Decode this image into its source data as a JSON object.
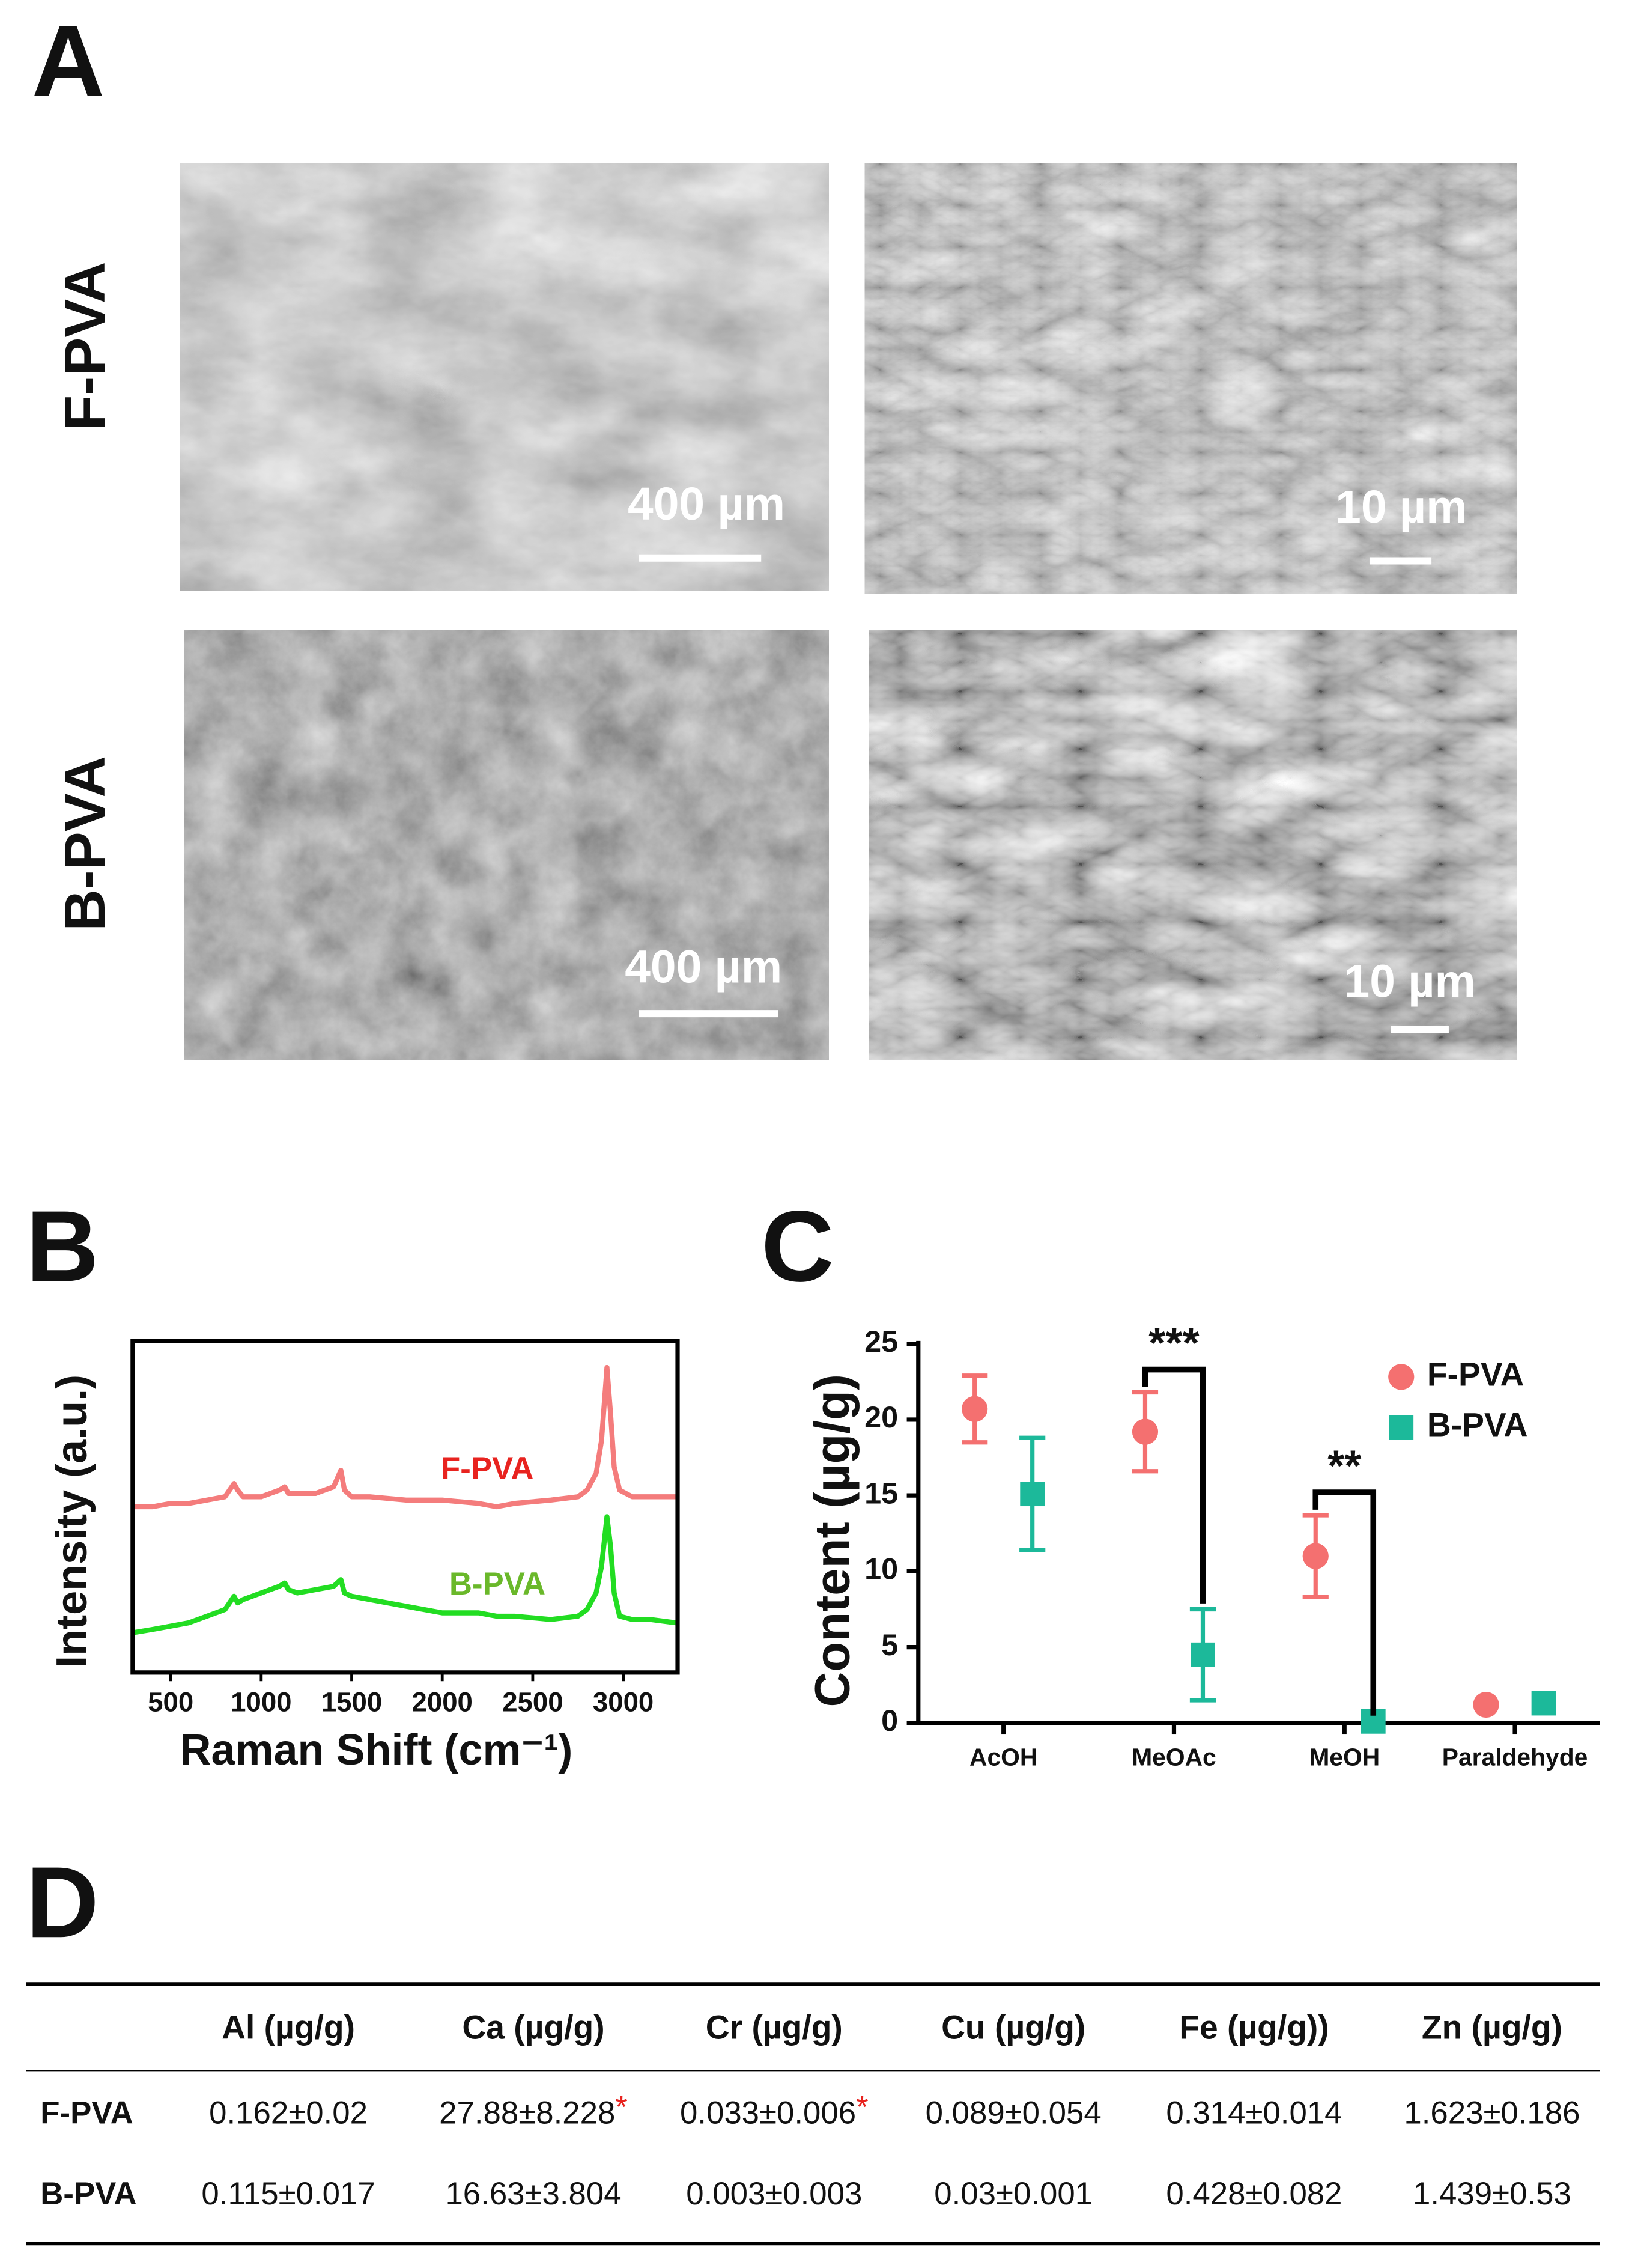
{
  "panels": {
    "a": "A",
    "b": "B",
    "c": "C",
    "d": "D"
  },
  "sem": {
    "row_labels": [
      "F-PVA",
      "B-PVA"
    ],
    "scale_bars": [
      [
        "400 µm",
        "10 µm"
      ],
      [
        "400 µm",
        "10 µm"
      ]
    ]
  },
  "chart_data": [
    {
      "type": "line",
      "xlabel": "Raman Shift (cm⁻¹)",
      "ylabel": "Intensity (a.u.)",
      "x": [
        290,
        400,
        500,
        600,
        700,
        800,
        850,
        870,
        900,
        950,
        1000,
        1050,
        1100,
        1130,
        1150,
        1200,
        1300,
        1400,
        1440,
        1460,
        1500,
        1600,
        1800,
        2000,
        2200,
        2300,
        2400,
        2600,
        2750,
        2800,
        2850,
        2880,
        2910,
        2930,
        2950,
        2980,
        3050,
        3150,
        3290
      ],
      "series": [
        {
          "name": "F-PVA",
          "color": "#f47c7c",
          "label_color": "#e8231f",
          "values": [
            50,
            50,
            51,
            51,
            52,
            53,
            57,
            55,
            53,
            53,
            53,
            54,
            55,
            56,
            54,
            54,
            54,
            56,
            61,
            55,
            53,
            53,
            52,
            52,
            51,
            50,
            51,
            52,
            53,
            55,
            60,
            70,
            92,
            78,
            62,
            55,
            53,
            53,
            53
          ]
        },
        {
          "name": "B-PVA",
          "color": "#22dd22",
          "label_color": "#6ab82a",
          "values": [
            12,
            13,
            14,
            15,
            17,
            19,
            23,
            21,
            22,
            23,
            24,
            25,
            26,
            27,
            25,
            24,
            25,
            26,
            28,
            24,
            23,
            22,
            20,
            18,
            18,
            17,
            17,
            16,
            17,
            19,
            24,
            32,
            47,
            38,
            24,
            17,
            16,
            16,
            15
          ]
        }
      ],
      "xlim": [
        290,
        3300
      ],
      "xticks": [
        500,
        1000,
        1500,
        2000,
        2500,
        3000
      ],
      "ylim": [
        0,
        100
      ],
      "grid": false
    },
    {
      "type": "scatter",
      "ylabel": "Content (µg/g)",
      "categories": [
        "AcOH",
        "MeOAc",
        "MeOH",
        "Paraldehyde"
      ],
      "series": [
        {
          "name": "F-PVA",
          "color": "#f47070",
          "marker": "circle",
          "values": [
            20.7,
            19.2,
            11.0,
            1.2
          ],
          "errors": [
            2.2,
            2.6,
            2.7,
            null
          ]
        },
        {
          "name": "B-PVA",
          "color": "#1cb99a",
          "marker": "square",
          "values": [
            15.1,
            4.5,
            0.1,
            1.3
          ],
          "errors": [
            3.7,
            3.0,
            null,
            null
          ]
        }
      ],
      "annotations": [
        "***",
        "**"
      ],
      "ylim": [
        0,
        25
      ],
      "yticks": [
        0,
        5,
        10,
        15,
        20,
        25
      ],
      "legend": "top-right",
      "grid": false
    }
  ],
  "table": {
    "columns": [
      "Al (µg/g)",
      "Ca (µg/g)",
      "Cr (µg/g)",
      "Cu (µg/g)",
      "Fe (µg/g))",
      "Zn (µg/g)"
    ],
    "rows": [
      {
        "label": "F-PVA",
        "cells": [
          {
            "text": "0.162±0.02"
          },
          {
            "text": "27.88±8.228",
            "mark": "*"
          },
          {
            "text": "0.033±0.006",
            "mark": "*"
          },
          {
            "text": "0.089±0.054"
          },
          {
            "text": "0.314±0.014"
          },
          {
            "text": "1.623±0.186"
          }
        ]
      },
      {
        "label": "B-PVA",
        "cells": [
          {
            "text": "0.115±0.017"
          },
          {
            "text": "16.63±3.804"
          },
          {
            "text": "0.003±0.003"
          },
          {
            "text": "0.03±0.001"
          },
          {
            "text": "0.428±0.082"
          },
          {
            "text": "1.439±0.53"
          }
        ]
      }
    ]
  }
}
